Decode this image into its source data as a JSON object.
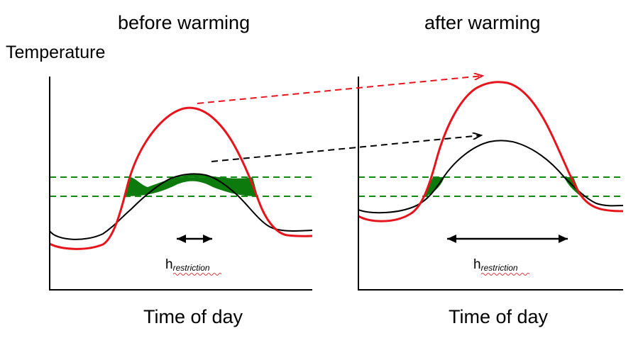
{
  "panels": {
    "left": {
      "title": "before warming",
      "xlabel": "Time of day",
      "h_main": "h",
      "h_sub": "restriction"
    },
    "right": {
      "title": "after warming",
      "xlabel": "Time of day",
      "h_main": "h",
      "h_sub": "restriction"
    }
  },
  "ylabel": "Temperature",
  "colors": {
    "red_curve": "#e8141c",
    "black_curve": "#000000",
    "threshold_lines": "#118a11",
    "fill": "#0d7a0d",
    "red_arrow": "#e8141c",
    "black_arrow": "#000000"
  }
}
